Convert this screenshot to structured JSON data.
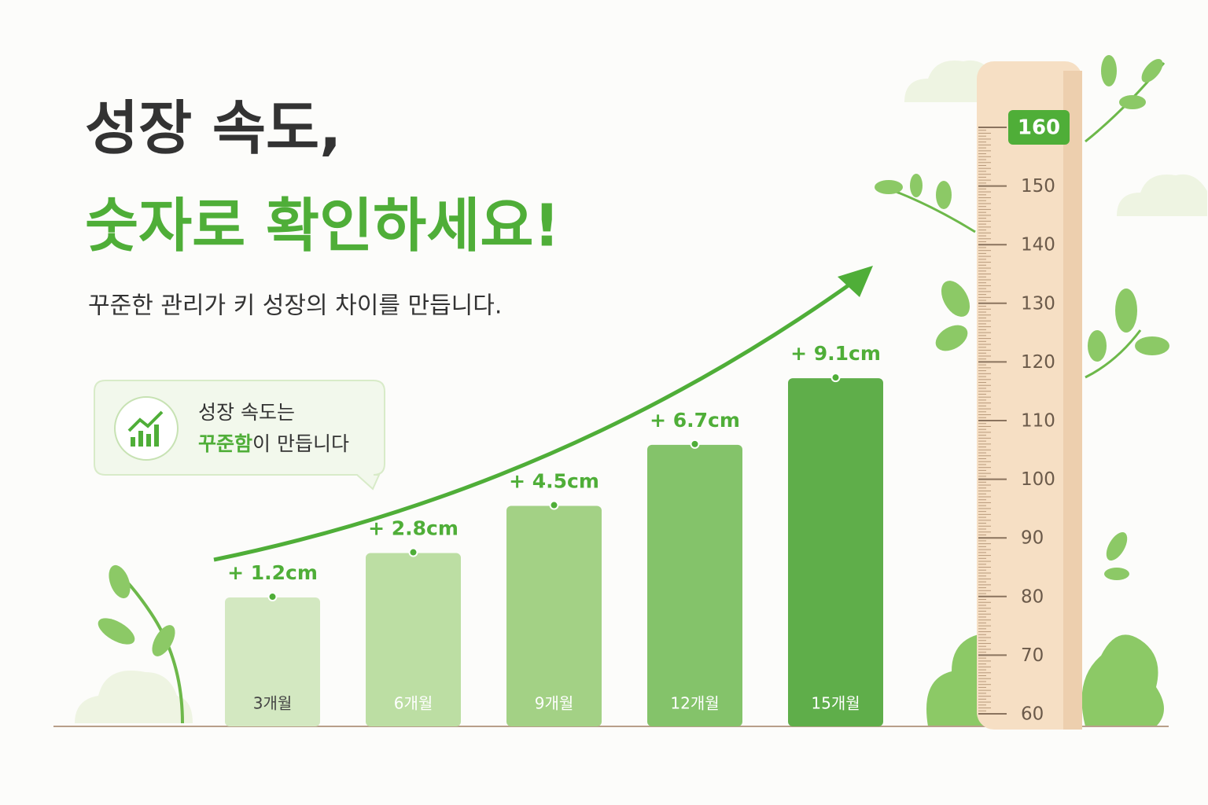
{
  "headline": [
    "성장 속도,",
    "숫자로 확인하세요!"
  ],
  "subtitle": "꾸준한 관리가 키 성장의 차이를 만듭니다.",
  "callout": {
    "line1": "성장 속도는",
    "highlight": "꾸준함",
    "rest": "이 만듭니다"
  },
  "chart_data": {
    "type": "bar",
    "categories": [
      "3개월",
      "6개월",
      "9개월",
      "12개월",
      "15개월"
    ],
    "values": [
      1.2,
      2.8,
      4.5,
      6.7,
      9.1
    ],
    "value_labels": [
      "+ 1.2cm",
      "+ 2.8cm",
      "+ 4.5cm",
      "+ 6.7cm",
      "+ 9.1cm"
    ],
    "colors": [
      "#d3e8c1",
      "#bcdea3",
      "#a3d185",
      "#84c36a",
      "#5fae4a"
    ]
  },
  "ruler": {
    "ticks": [
      60,
      70,
      80,
      90,
      100,
      110,
      120,
      130,
      140,
      150,
      160
    ]
  }
}
